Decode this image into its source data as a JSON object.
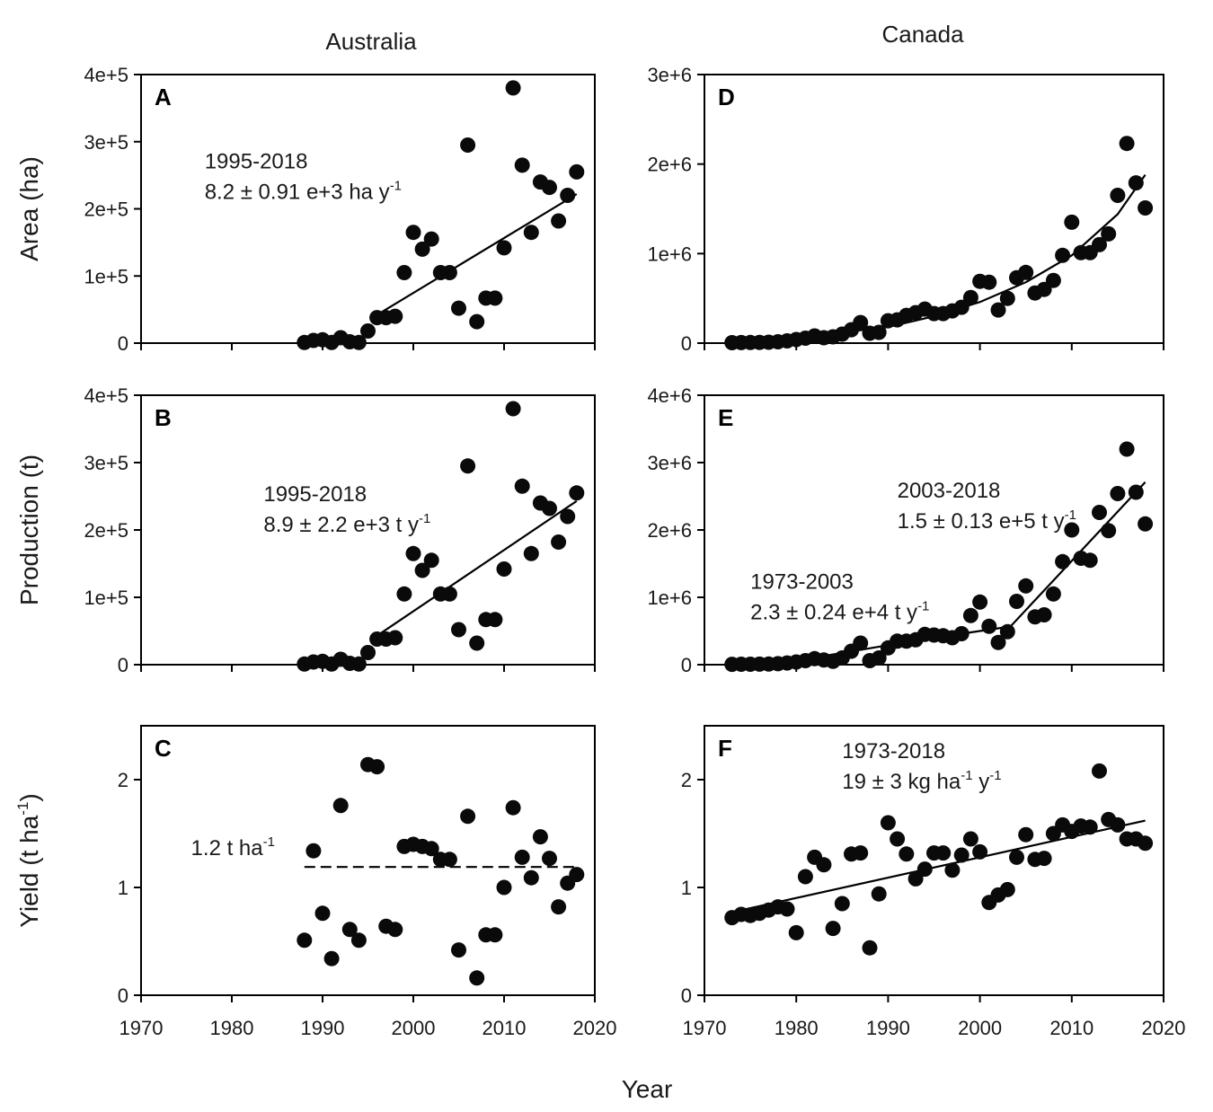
{
  "chart_data": {
    "type": "scatter",
    "xlabel": "Year",
    "columns": [
      "Australia",
      "Canada"
    ],
    "panels": [
      {
        "id": "A",
        "col": 0,
        "row": 0,
        "country": "Australia",
        "ylabel": "Area (ha)",
        "xlim": [
          1970,
          2020
        ],
        "ylim": [
          0,
          400000
        ],
        "yticks": [
          0,
          100000,
          200000,
          300000,
          400000
        ],
        "ytick_labels": [
          "0",
          "1e+5",
          "2e+5",
          "3e+5",
          "4e+5"
        ],
        "x": [
          1988,
          1989,
          1990,
          1991,
          1992,
          1993,
          1994,
          1995,
          1996,
          1997,
          1998,
          1999,
          2000,
          2001,
          2002,
          2003,
          2004,
          2005,
          2006,
          2007,
          2008,
          2009,
          2010,
          2011,
          2012,
          2013,
          2014,
          2015,
          2016,
          2017,
          2018
        ],
        "y": [
          1000,
          4000,
          5000,
          1000,
          8000,
          2000,
          1000,
          18000,
          38000,
          38000,
          40000,
          105000,
          165000,
          140000,
          155000,
          105000,
          105000,
          52000,
          295000,
          32000,
          67000,
          67000,
          142000,
          380000,
          265000,
          165000,
          240000,
          232000,
          182000,
          220000,
          255000
        ],
        "fits": [
          {
            "style": "solid",
            "x": [
              1996,
              2018
            ],
            "y": [
              42000,
              222000
            ]
          }
        ],
        "annotation": {
          "lines": [
            "1995-2018",
            "8.2 ± 0.91 e+3 ha y"
          ],
          "sup": "-1",
          "x": 1977,
          "y": 260000
        }
      },
      {
        "id": "B",
        "col": 0,
        "row": 1,
        "country": "Australia",
        "ylabel": "Production (t)",
        "xlim": [
          1970,
          2020
        ],
        "ylim": [
          0,
          400000
        ],
        "yticks": [
          0,
          100000,
          200000,
          300000,
          400000
        ],
        "ytick_labels": [
          "0",
          "1e+5",
          "2e+5",
          "3e+5",
          "4e+5"
        ],
        "x": [
          1988,
          1989,
          1990,
          1991,
          1992,
          1993,
          1994,
          1995,
          1996,
          1997,
          1998,
          1999,
          2000,
          2001,
          2002,
          2003,
          2004,
          2005,
          2006,
          2007,
          2008,
          2009,
          2010,
          2011,
          2012,
          2013,
          2014,
          2015,
          2016,
          2017,
          2018
        ],
        "y": [
          1000,
          4000,
          5000,
          1000,
          8000,
          2000,
          1000,
          18000,
          38000,
          38000,
          40000,
          105000,
          165000,
          140000,
          155000,
          105000,
          105000,
          52000,
          295000,
          32000,
          67000,
          67000,
          142000,
          380000,
          265000,
          165000,
          240000,
          232000,
          182000,
          220000,
          255000
        ],
        "fits": [
          {
            "style": "solid",
            "x": [
              1996,
              2018
            ],
            "y": [
              43000,
              243000
            ]
          }
        ],
        "annotation": {
          "lines": [
            "1995-2018",
            "8.9 ± 2.2 e+3 t y"
          ],
          "sup": "-1",
          "x": 1983.5,
          "y": 243000
        }
      },
      {
        "id": "C",
        "col": 0,
        "row": 2,
        "country": "Australia",
        "ylabel": "Yield (t ha",
        "ylabel_sup": "-1",
        "ylabel_end": ")",
        "xlim": [
          1970,
          2020
        ],
        "ylim": [
          0,
          2.5
        ],
        "yticks": [
          0,
          1,
          2
        ],
        "ytick_labels": [
          "0",
          "1",
          "2"
        ],
        "xticks": [
          1970,
          1980,
          1990,
          2000,
          2010,
          2020
        ],
        "xtick_labels": [
          "1970",
          "1980",
          "1990",
          "2000",
          "2010",
          "2020"
        ],
        "x": [
          1988,
          1989,
          1990,
          1991,
          1992,
          1993,
          1994,
          1995,
          1996,
          1997,
          1998,
          1999,
          2000,
          2001,
          2002,
          2003,
          2004,
          2005,
          2006,
          2007,
          2008,
          2009,
          2010,
          2011,
          2012,
          2013,
          2014,
          2015,
          2016,
          2017,
          2018
        ],
        "y": [
          0.51,
          1.34,
          0.76,
          0.34,
          1.76,
          0.61,
          0.51,
          2.14,
          2.12,
          0.64,
          0.61,
          1.38,
          1.4,
          1.38,
          1.36,
          1.26,
          1.26,
          0.42,
          1.66,
          0.16,
          0.56,
          0.56,
          1.0,
          1.74,
          1.28,
          1.09,
          1.47,
          1.27,
          0.82,
          1.04,
          1.12
        ],
        "fits": [
          {
            "style": "dashed",
            "x": [
              1988,
              2018
            ],
            "y": [
              1.19,
              1.19
            ]
          }
        ],
        "annotation": {
          "lines": [
            "1.2 t ha"
          ],
          "sup": "-1",
          "x": 1975.5,
          "y": 1.3
        }
      },
      {
        "id": "D",
        "col": 1,
        "row": 0,
        "country": "Canada",
        "ylabel": "",
        "xlim": [
          1970,
          2020
        ],
        "ylim": [
          0,
          3000000
        ],
        "yticks": [
          0,
          1000000,
          2000000,
          3000000
        ],
        "ytick_labels": [
          "0",
          "1e+6",
          "2e+6",
          "3e+6"
        ],
        "x": [
          1973,
          1974,
          1975,
          1976,
          1977,
          1978,
          1979,
          1980,
          1981,
          1982,
          1983,
          1984,
          1985,
          1986,
          1987,
          1988,
          1989,
          1990,
          1991,
          1992,
          1993,
          1994,
          1995,
          1996,
          1997,
          1998,
          1999,
          2000,
          2001,
          2002,
          2003,
          2004,
          2005,
          2006,
          2007,
          2008,
          2009,
          2010,
          2011,
          2012,
          2013,
          2014,
          2015,
          2016,
          2017,
          2018
        ],
        "y": [
          5000,
          6000,
          7000,
          8000,
          10000,
          15000,
          25000,
          40000,
          55000,
          80000,
          60000,
          70000,
          100000,
          150000,
          230000,
          110000,
          120000,
          250000,
          260000,
          310000,
          340000,
          380000,
          330000,
          330000,
          360000,
          400000,
          510000,
          690000,
          680000,
          370000,
          500000,
          730000,
          790000,
          560000,
          600000,
          700000,
          980000,
          1350000,
          1010000,
          1010000,
          1100000,
          1220000,
          1650000,
          2230000,
          1790000,
          1510000
        ],
        "fits": [
          {
            "style": "solid",
            "x": [
              1973,
              1980,
              1990,
              1995,
              2000,
              2005,
              2010,
              2015,
              2018
            ],
            "y": [
              20000,
              60000,
              180000,
              300000,
              460000,
              680000,
              980000,
              1440000,
              1880000
            ]
          }
        ]
      },
      {
        "id": "E",
        "col": 1,
        "row": 1,
        "country": "Canada",
        "ylabel": "",
        "xlim": [
          1970,
          2020
        ],
        "ylim": [
          0,
          4000000
        ],
        "yticks": [
          0,
          1000000,
          2000000,
          3000000,
          4000000
        ],
        "ytick_labels": [
          "0",
          "1e+6",
          "2e+6",
          "3e+6",
          "4e+6"
        ],
        "x": [
          1973,
          1974,
          1975,
          1976,
          1977,
          1978,
          1979,
          1980,
          1981,
          1982,
          1983,
          1984,
          1985,
          1986,
          1987,
          1988,
          1989,
          1990,
          1991,
          1992,
          1993,
          1994,
          1995,
          1996,
          1997,
          1998,
          1999,
          2000,
          2001,
          2002,
          2003,
          2004,
          2005,
          2006,
          2007,
          2008,
          2009,
          2010,
          2011,
          2012,
          2013,
          2014,
          2015,
          2016,
          2017,
          2018
        ],
        "y": [
          5000,
          6000,
          7000,
          8000,
          10000,
          15000,
          25000,
          40000,
          60000,
          90000,
          70000,
          50000,
          100000,
          200000,
          320000,
          60000,
          100000,
          250000,
          350000,
          350000,
          370000,
          450000,
          440000,
          430000,
          400000,
          460000,
          730000,
          930000,
          570000,
          330000,
          490000,
          940000,
          1170000,
          710000,
          740000,
          1050000,
          1530000,
          2000000,
          1580000,
          1550000,
          2260000,
          1990000,
          2540000,
          3200000,
          2560000,
          2090000
        ],
        "fits": [
          {
            "style": "solid",
            "x": [
              1973,
              1980,
              1990,
              1995,
              2003
            ],
            "y": [
              10000,
              60000,
              290000,
              400000,
              560000
            ]
          },
          {
            "style": "solid",
            "x": [
              2003,
              2018
            ],
            "y": [
              520000,
              2710000
            ]
          }
        ],
        "annotations": [
          {
            "lines": [
              "2003-2018",
              "1.5 ± 0.13 e+5 t y"
            ],
            "sup": "-1",
            "x": 1991,
            "y": 2480000
          },
          {
            "lines": [
              "1973-2003",
              "2.3 ± 0.24 e+4 t y"
            ],
            "sup": "-1",
            "x": 1975,
            "y": 1130000
          }
        ]
      },
      {
        "id": "F",
        "col": 1,
        "row": 2,
        "country": "Canada",
        "ylabel": "",
        "xlim": [
          1970,
          2020
        ],
        "ylim": [
          0,
          2.5
        ],
        "yticks": [
          0,
          1,
          2
        ],
        "ytick_labels": [
          "0",
          "1",
          "2"
        ],
        "xticks": [
          1970,
          1980,
          1990,
          2000,
          2010,
          2020
        ],
        "xtick_labels": [
          "1970",
          "1980",
          "1990",
          "2000",
          "2010",
          "2020"
        ],
        "x": [
          1973,
          1974,
          1975,
          1976,
          1977,
          1978,
          1979,
          1980,
          1981,
          1982,
          1983,
          1984,
          1985,
          1986,
          1987,
          1988,
          1989,
          1990,
          1991,
          1992,
          1993,
          1994,
          1995,
          1996,
          1997,
          1998,
          1999,
          2000,
          2001,
          2002,
          2003,
          2004,
          2005,
          2006,
          2007,
          2008,
          2009,
          2010,
          2011,
          2012,
          2013,
          2014,
          2015,
          2016,
          2017,
          2018
        ],
        "y": [
          0.72,
          0.75,
          0.74,
          0.76,
          0.79,
          0.82,
          0.8,
          0.58,
          1.1,
          1.28,
          1.21,
          0.62,
          0.85,
          1.31,
          1.32,
          0.44,
          0.94,
          1.6,
          1.45,
          1.31,
          1.08,
          1.17,
          1.32,
          1.32,
          1.16,
          1.3,
          1.45,
          1.33,
          0.86,
          0.93,
          0.98,
          1.28,
          1.49,
          1.26,
          1.27,
          1.5,
          1.58,
          1.52,
          1.57,
          1.56,
          2.08,
          1.63,
          1.58,
          1.45,
          1.45,
          1.41
        ],
        "fits": [
          {
            "style": "solid",
            "x": [
              1973,
              2018
            ],
            "y": [
              0.77,
              1.62
            ]
          }
        ],
        "annotation": {
          "lines": [
            "1973-2018",
            "19 ± 3 kg ha"
          ],
          "mid_sup": "-1",
          "after": " y",
          "sup": "-1",
          "x": 1985,
          "y": 2.2
        }
      }
    ]
  }
}
